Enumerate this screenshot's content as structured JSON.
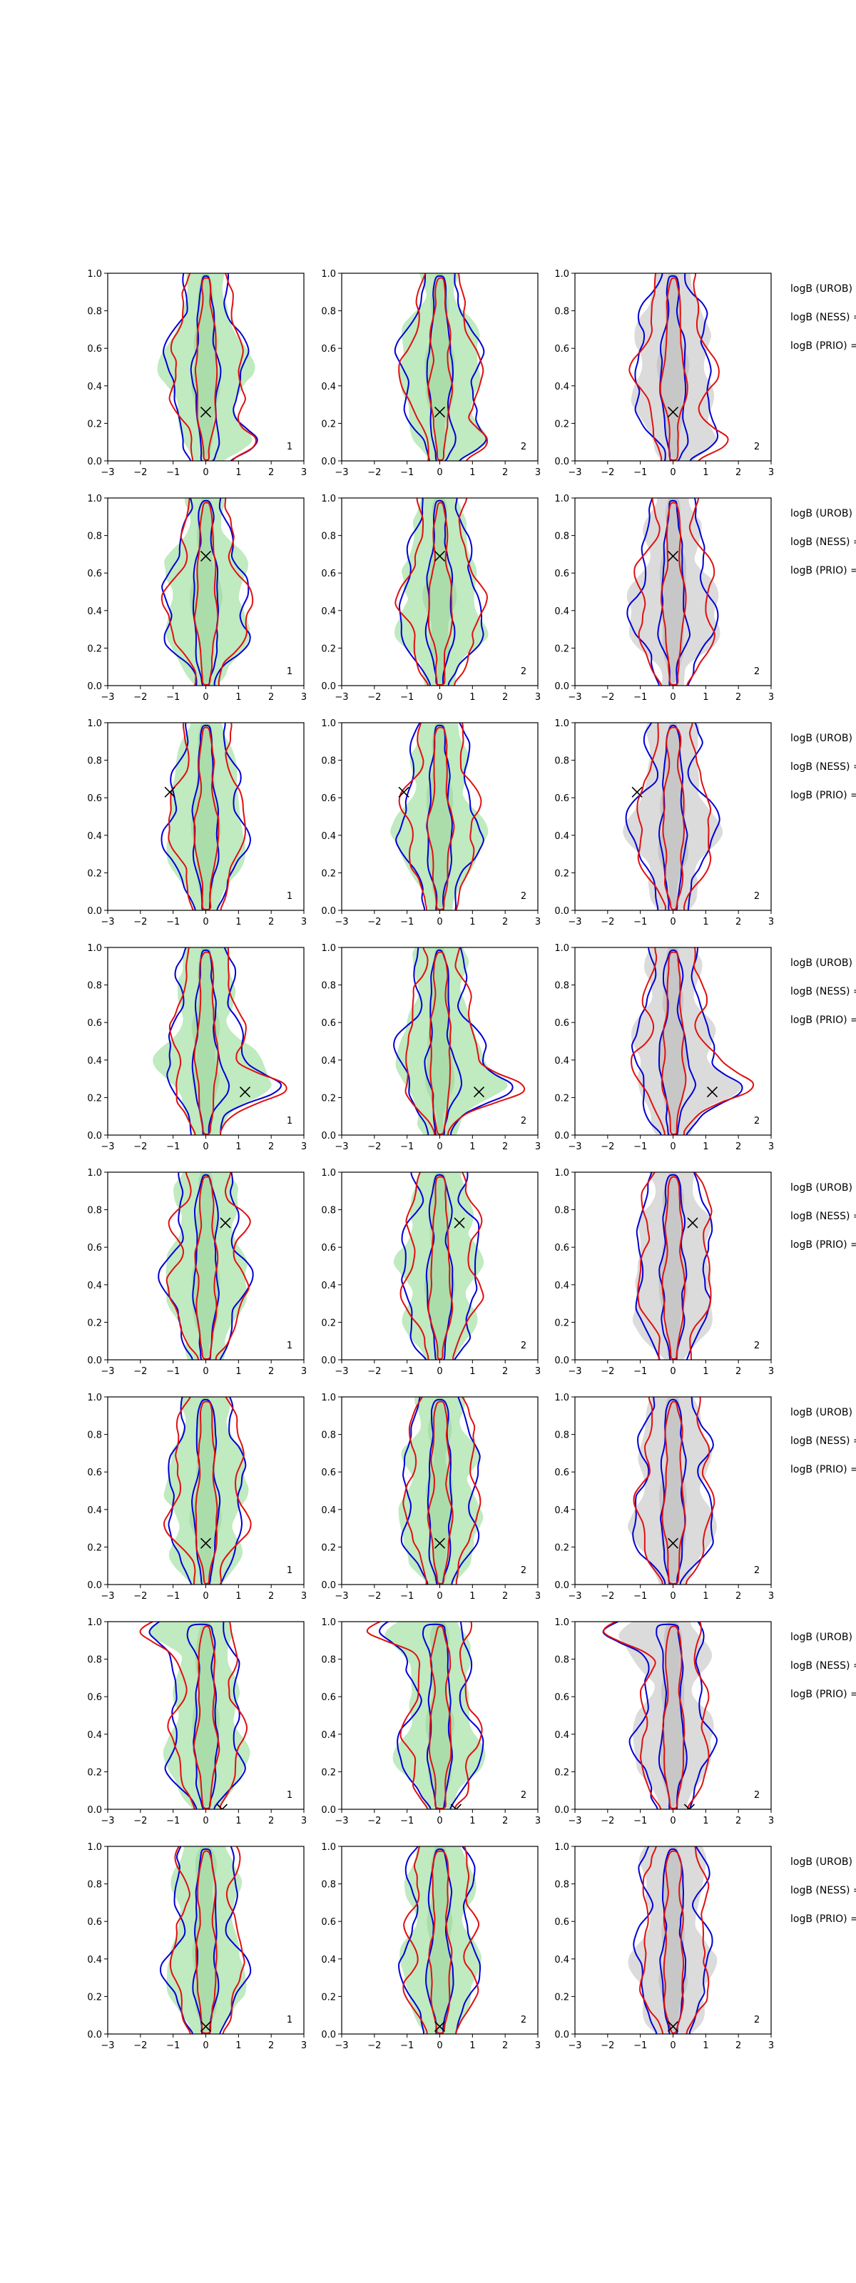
{
  "chart_data": {
    "type": "contour-grid",
    "rows": 8,
    "columns": 3,
    "xlim": [
      -3,
      3
    ],
    "ylim": [
      0.0,
      1.0
    ],
    "x_ticks": [
      "−3",
      "−2",
      "−1",
      "0",
      "1",
      "2",
      "3"
    ],
    "y_ticks": [
      "0.0",
      "0.2",
      "0.4",
      "0.6",
      "0.8",
      "1.0"
    ],
    "panel_labels": [
      "1",
      "2",
      "2"
    ],
    "side_labels": [
      "logB (UROB) =",
      "logB (NESS) =",
      "logB (PRIO) ="
    ],
    "colors": {
      "fill_col1": "#bde9bd",
      "fill_col2": "#bde9bd",
      "fill_col3": "#d9d9d9",
      "blue": "#0000d6",
      "red": "#e01010",
      "marker": "#000000"
    },
    "markers": [
      {
        "x": 0.0,
        "y": 0.26
      },
      {
        "x": 0.0,
        "y": 0.69
      },
      {
        "x": -1.1,
        "y": 0.63
      },
      {
        "x": 1.2,
        "y": 0.23
      },
      {
        "x": 0.6,
        "y": 0.73
      },
      {
        "x": 0.0,
        "y": 0.22
      },
      {
        "x": 0.5,
        "y": 0.0
      },
      {
        "x": 0.0,
        "y": 0.04
      }
    ]
  }
}
